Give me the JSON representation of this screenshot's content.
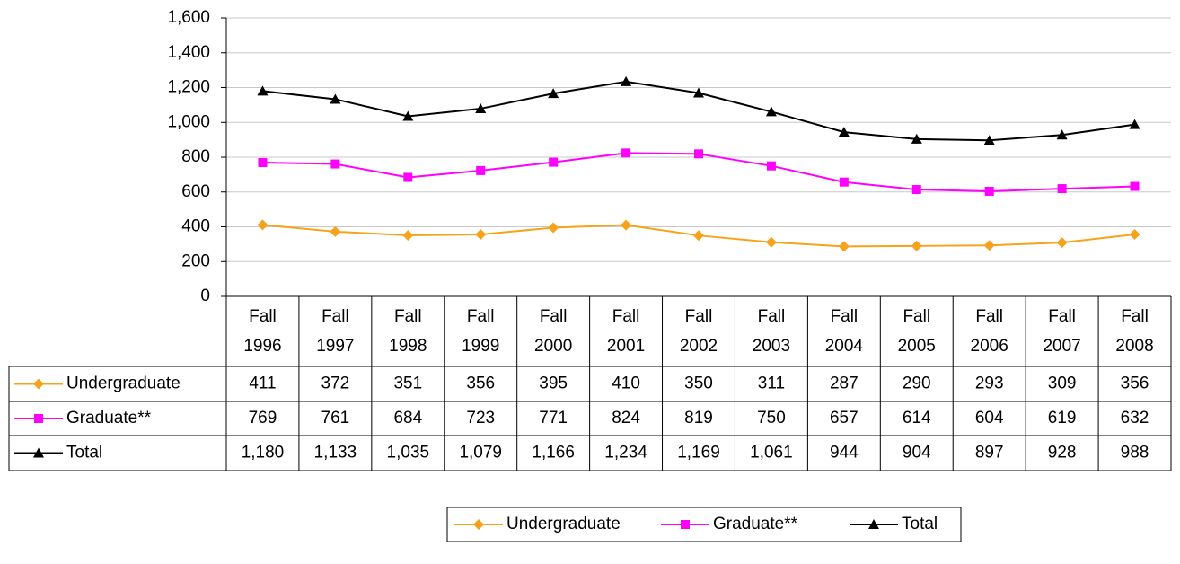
{
  "chart_data": {
    "type": "line",
    "categories": [
      "Fall 1996",
      "Fall 1997",
      "Fall 1998",
      "Fall 1999",
      "Fall 2000",
      "Fall 2001",
      "Fall 2002",
      "Fall 2003",
      "Fall 2004",
      "Fall 2005",
      "Fall 2006",
      "Fall 2007",
      "Fall 2008"
    ],
    "series": [
      {
        "name": "Undergraduate",
        "color": "#F7A21B",
        "marker": "diamond",
        "values": [
          411,
          372,
          351,
          356,
          395,
          410,
          350,
          311,
          287,
          290,
          293,
          309,
          356
        ],
        "value_labels": [
          "411",
          "372",
          "351",
          "356",
          "395",
          "410",
          "350",
          "311",
          "287",
          "290",
          "293",
          "309",
          "356"
        ]
      },
      {
        "name": "Graduate**",
        "color": "#FF00FF",
        "marker": "square",
        "values": [
          769,
          761,
          684,
          723,
          771,
          824,
          819,
          750,
          657,
          614,
          604,
          619,
          632
        ],
        "value_labels": [
          "769",
          "761",
          "684",
          "723",
          "771",
          "824",
          "819",
          "750",
          "657",
          "614",
          "604",
          "619",
          "632"
        ]
      },
      {
        "name": "Total",
        "color": "#000000",
        "marker": "triangle",
        "values": [
          1180,
          1133,
          1035,
          1079,
          1166,
          1234,
          1169,
          1061,
          944,
          904,
          897,
          928,
          988
        ],
        "value_labels": [
          "1,180",
          "1,133",
          "1,035",
          "1,079",
          "1,166",
          "1,234",
          "1,169",
          "1,061",
          "944",
          "904",
          "897",
          "928",
          "988"
        ]
      }
    ],
    "ylim": [
      0,
      1600
    ],
    "yticks": [
      0,
      200,
      400,
      600,
      800,
      {
        "value": 1000,
        "label": "1,000"
      },
      {
        "value": 1200,
        "label": "1,200"
      },
      {
        "value": 1400,
        "label": "1,400"
      },
      {
        "value": 1600,
        "label": "1,600"
      }
    ],
    "grid": true,
    "data_table": true,
    "legend": "bottom"
  }
}
